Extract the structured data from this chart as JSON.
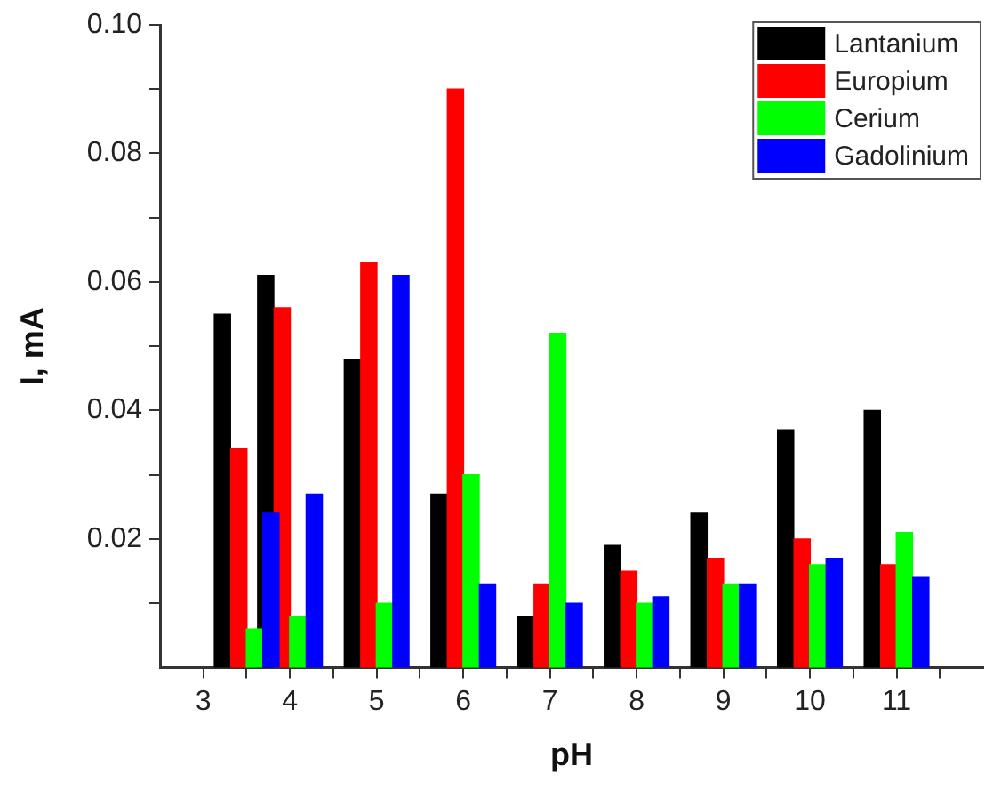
{
  "chart_data": {
    "type": "bar",
    "xlabel": "pH",
    "ylabel": "I, mA",
    "series": [
      {
        "name": "Lantanium",
        "color": "#000000",
        "x": [
          3.22,
          3.72,
          4.72,
          5.72,
          6.72,
          7.72,
          8.72,
          9.72,
          10.72
        ],
        "values": [
          0.055,
          0.061,
          0.048,
          0.027,
          0.008,
          0.019,
          0.024,
          0.037,
          0.04
        ]
      },
      {
        "name": "Europium",
        "color": "#ff0000",
        "x": [
          3.41,
          3.91,
          4.91,
          5.91,
          6.91,
          7.91,
          8.91,
          9.91,
          10.91
        ],
        "values": [
          0.034,
          0.056,
          0.063,
          0.09,
          0.013,
          0.015,
          0.017,
          0.02,
          0.016
        ]
      },
      {
        "name": "Cerium",
        "color": "#00ff00",
        "x": [
          3.59,
          4.09,
          5.09,
          6.09,
          7.09,
          8.09,
          9.09,
          10.09,
          11.09
        ],
        "values": [
          0.006,
          0.008,
          0.01,
          0.03,
          0.052,
          0.01,
          0.013,
          0.016,
          0.021
        ]
      },
      {
        "name": "Gadolinium",
        "color": "#0000ff",
        "x": [
          3.78,
          4.28,
          5.28,
          6.28,
          7.28,
          8.28,
          9.28,
          10.28,
          11.28
        ],
        "values": [
          0.024,
          0.027,
          0.061,
          0.013,
          0.01,
          0.011,
          0.013,
          0.017,
          0.014
        ]
      }
    ],
    "xlim": [
      2.5,
      12
    ],
    "xticks": [
      3,
      {
        "value": 3.5,
        "label": null
      },
      4,
      {
        "value": 4.5,
        "label": null
      },
      5,
      {
        "value": 5.5,
        "label": null
      },
      6,
      {
        "value": 6.5,
        "label": null
      },
      7,
      {
        "value": 7.5,
        "label": null
      },
      8,
      {
        "value": 8.5,
        "label": null
      },
      9,
      {
        "value": 9.5,
        "label": null
      },
      10,
      {
        "value": 10.5,
        "label": null
      },
      11,
      {
        "value": 11.5,
        "label": null
      }
    ],
    "ylim": [
      0,
      0.1
    ],
    "yticks": [
      {
        "value": 0.01,
        "label": null
      },
      0.02,
      {
        "value": 0.03,
        "label": null
      },
      0.04,
      {
        "value": 0.05,
        "label": null
      },
      0.06,
      {
        "value": 0.07,
        "label": null
      },
      0.08,
      {
        "value": 0.09,
        "label": null
      },
      {
        "value": 0.1,
        "label": "0.10"
      }
    ],
    "grid": false,
    "legend": "top right"
  }
}
